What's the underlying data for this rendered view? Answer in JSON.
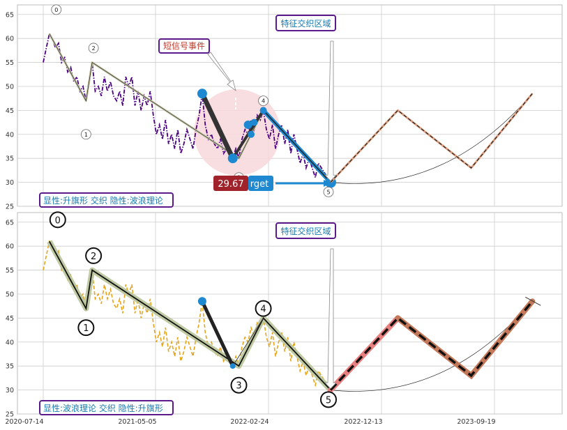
{
  "chart_data": [
    {
      "type": "line",
      "panel": "top",
      "ylim": [
        25,
        67
      ],
      "yticks": [
        25,
        30,
        35,
        40,
        45,
        50,
        55,
        60,
        65
      ],
      "grid": true,
      "title_box": "特征交织区域",
      "event_label": "短信号事件",
      "price_tag": "29.67",
      "target_label": "rget",
      "footer": "显性:升旗形 交织 隐性:波浪理论",
      "wave_labels": [
        "0",
        "1",
        "2",
        "3",
        "4",
        "5"
      ],
      "wave_points": [
        [
          1,
          61
        ],
        [
          7,
          47
        ],
        [
          8,
          55
        ],
        [
          32,
          35
        ],
        [
          36,
          45
        ],
        [
          47,
          30
        ]
      ],
      "flag_points": [
        [
          26,
          48.5
        ],
        [
          31,
          35
        ],
        [
          36,
          45
        ],
        [
          47,
          30
        ]
      ],
      "projection": [
        [
          47,
          30
        ],
        [
          58,
          45
        ],
        [
          70,
          33
        ],
        [
          80,
          48.5
        ]
      ],
      "series": [
        {
          "style": "dash-dot purple",
          "values": [
            [
              0,
              55
            ],
            [
              0.5,
              58
            ],
            [
              1,
              61
            ],
            [
              1.5,
              60
            ],
            [
              2,
              58
            ],
            [
              2.5,
              59
            ],
            [
              3,
              55
            ],
            [
              3.5,
              56
            ],
            [
              4,
              53
            ],
            [
              4.5,
              54
            ],
            [
              5,
              51
            ],
            [
              5.5,
              52
            ],
            [
              6,
              49
            ],
            [
              6.5,
              50
            ],
            [
              7,
              47
            ],
            [
              7.5,
              51
            ],
            [
              8,
              55
            ],
            [
              8.5,
              49
            ],
            [
              9,
              50
            ],
            [
              9.5,
              48
            ],
            [
              10,
              52
            ],
            [
              10.5,
              49
            ],
            [
              11,
              51
            ],
            [
              11.5,
              48
            ],
            [
              12,
              47
            ],
            [
              12.5,
              49
            ],
            [
              13,
              46
            ],
            [
              13.5,
              52
            ],
            [
              14,
              50
            ],
            [
              14.5,
              52
            ],
            [
              15,
              46
            ],
            [
              15.5,
              49
            ],
            [
              16,
              45
            ],
            [
              16.5,
              48
            ],
            [
              17,
              46
            ],
            [
              17.5,
              49
            ],
            [
              18,
              44
            ],
            [
              18.5,
              40
            ],
            [
              19,
              42
            ],
            [
              19.5,
              39
            ],
            [
              20,
              43
            ],
            [
              20.5,
              38
            ],
            [
              21,
              40
            ],
            [
              21.5,
              37
            ],
            [
              22,
              41
            ],
            [
              22.5,
              36
            ],
            [
              23,
              38
            ],
            [
              23.5,
              41
            ],
            [
              24,
              39
            ],
            [
              24.5,
              37
            ],
            [
              25,
              41
            ],
            [
              25.5,
              44
            ],
            [
              26,
              48.5
            ],
            [
              26.5,
              42
            ],
            [
              27,
              39
            ],
            [
              27.5,
              40
            ],
            [
              28,
              38
            ],
            [
              28.5,
              37
            ],
            [
              29,
              39
            ],
            [
              29.5,
              36
            ],
            [
              30,
              37
            ],
            [
              30.5,
              35.5
            ],
            [
              31,
              35
            ],
            [
              31.5,
              37
            ],
            [
              32,
              35
            ],
            [
              32.5,
              39
            ],
            [
              33,
              41
            ],
            [
              33.5,
              40
            ],
            [
              34,
              43
            ],
            [
              34.5,
              41
            ],
            [
              35,
              44
            ],
            [
              35.5,
              43
            ],
            [
              36,
              45
            ],
            [
              36.5,
              41
            ],
            [
              37,
              39
            ],
            [
              37.5,
              42
            ],
            [
              38,
              37
            ],
            [
              38.5,
              40
            ],
            [
              39,
              42
            ],
            [
              39.5,
              38
            ],
            [
              40,
              41
            ],
            [
              40.5,
              36
            ],
            [
              41,
              40
            ],
            [
              41.5,
              37
            ],
            [
              42,
              34
            ],
            [
              42.5,
              36
            ],
            [
              43,
              33
            ],
            [
              43.5,
              35
            ],
            [
              44,
              33
            ],
            [
              44.5,
              31
            ],
            [
              45,
              34
            ],
            [
              45.5,
              33
            ],
            [
              46,
              32
            ],
            [
              46.5,
              31
            ],
            [
              47,
              30
            ]
          ]
        }
      ]
    },
    {
      "type": "line",
      "panel": "bottom",
      "ylim": [
        25,
        67
      ],
      "yticks": [
        25,
        30,
        35,
        40,
        45,
        50,
        55,
        60,
        65
      ],
      "grid": true,
      "title_box": "特征交织区域",
      "footer": "显性:波浪理论 交织 隐性:升旗形",
      "xticks": [
        "2020-07-14",
        "2021-05-05",
        "2022-02-24",
        "2022-12-13",
        "2023-09-19"
      ],
      "wave_labels": [
        "0",
        "1",
        "2",
        "3",
        "4",
        "5"
      ],
      "wave_points": [
        [
          1,
          61
        ],
        [
          7,
          47
        ],
        [
          8,
          55
        ],
        [
          32,
          35
        ],
        [
          36,
          45
        ],
        [
          47,
          30
        ]
      ],
      "flag_points": [
        [
          26,
          48.5
        ],
        [
          31,
          35
        ],
        [
          36,
          45
        ],
        [
          47,
          30
        ]
      ],
      "projection": [
        [
          47,
          30
        ],
        [
          58,
          45
        ],
        [
          70,
          33
        ],
        [
          80,
          48.5
        ]
      ],
      "series": [
        {
          "style": "dashed orange",
          "values": [
            [
              0,
              55
            ],
            [
              0.5,
              58
            ],
            [
              1,
              61
            ],
            [
              1.5,
              60
            ],
            [
              2,
              58
            ],
            [
              2.5,
              59
            ],
            [
              3,
              55
            ],
            [
              3.5,
              56
            ],
            [
              4,
              53
            ],
            [
              4.5,
              54
            ],
            [
              5,
              51
            ],
            [
              5.5,
              52
            ],
            [
              6,
              49
            ],
            [
              6.5,
              50
            ],
            [
              7,
              47
            ],
            [
              7.5,
              51
            ],
            [
              8,
              55
            ],
            [
              8.5,
              49
            ],
            [
              9,
              50
            ],
            [
              9.5,
              48
            ],
            [
              10,
              52
            ],
            [
              10.5,
              49
            ],
            [
              11,
              51
            ],
            [
              11.5,
              48
            ],
            [
              12,
              47
            ],
            [
              12.5,
              49
            ],
            [
              13,
              46
            ],
            [
              13.5,
              52
            ],
            [
              14,
              50
            ],
            [
              14.5,
              52
            ],
            [
              15,
              46
            ],
            [
              15.5,
              49
            ],
            [
              16,
              45
            ],
            [
              16.5,
              48
            ],
            [
              17,
              46
            ],
            [
              17.5,
              49
            ],
            [
              18,
              44
            ],
            [
              18.5,
              40
            ],
            [
              19,
              42
            ],
            [
              19.5,
              39
            ],
            [
              20,
              43
            ],
            [
              20.5,
              38
            ],
            [
              21,
              40
            ],
            [
              21.5,
              37
            ],
            [
              22,
              41
            ],
            [
              22.5,
              36
            ],
            [
              23,
              38
            ],
            [
              23.5,
              41
            ],
            [
              24,
              39
            ],
            [
              24.5,
              37
            ],
            [
              25,
              41
            ],
            [
              25.5,
              44
            ],
            [
              26,
              48.5
            ],
            [
              26.5,
              42
            ],
            [
              27,
              39
            ],
            [
              27.5,
              40
            ],
            [
              28,
              38
            ],
            [
              28.5,
              37
            ],
            [
              29,
              39
            ],
            [
              29.5,
              36
            ],
            [
              30,
              37
            ],
            [
              30.5,
              35.5
            ],
            [
              31,
              35
            ],
            [
              31.5,
              37
            ],
            [
              32,
              35
            ],
            [
              32.5,
              39
            ],
            [
              33,
              41
            ],
            [
              33.5,
              40
            ],
            [
              34,
              43
            ],
            [
              34.5,
              41
            ],
            [
              35,
              44
            ],
            [
              35.5,
              43
            ],
            [
              36,
              45
            ],
            [
              36.5,
              41
            ],
            [
              37,
              39
            ],
            [
              37.5,
              42
            ],
            [
              38,
              37
            ],
            [
              38.5,
              40
            ],
            [
              39,
              42
            ],
            [
              39.5,
              38
            ],
            [
              40,
              41
            ],
            [
              40.5,
              36
            ],
            [
              41,
              40
            ],
            [
              41.5,
              37
            ],
            [
              42,
              34
            ],
            [
              42.5,
              36
            ],
            [
              43,
              33
            ],
            [
              43.5,
              35
            ],
            [
              44,
              33
            ],
            [
              44.5,
              31
            ],
            [
              45,
              34
            ],
            [
              45.5,
              33
            ],
            [
              46,
              32
            ],
            [
              46.5,
              31
            ],
            [
              47,
              30
            ]
          ]
        }
      ]
    }
  ],
  "colors": {
    "grid": "#cccccc",
    "frame": "#bbbbbb",
    "purple": "#4b0082",
    "orange": "#e8a317",
    "blue": "#1e88d0",
    "dark": "#222222",
    "salmon": "#e88080",
    "brown": "#c47a5a",
    "tan": "#e0a080",
    "box_border": "#5a1a8c",
    "box_text": "#1a7ab0",
    "event_text": "#c0392b",
    "price_bg": "#a0222a",
    "pink": "#f8d8dc",
    "olive": "#b8c49a"
  }
}
